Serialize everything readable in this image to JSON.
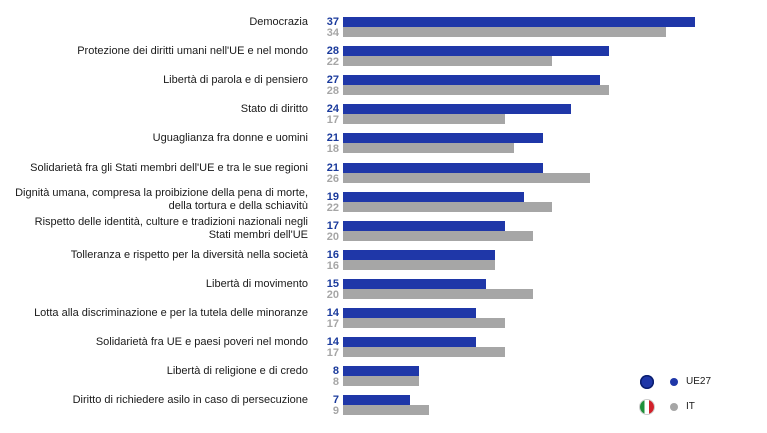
{
  "chart_data": {
    "type": "bar",
    "orientation": "horizontal",
    "xlim": [
      0,
      40
    ],
    "grid": false,
    "legend_position": "bottom-right",
    "categories": [
      [
        "Democrazia"
      ],
      [
        "Protezione dei diritti umani nell'UE e nel mondo"
      ],
      [
        "Libertà di parola e di pensiero"
      ],
      [
        "Stato di diritto"
      ],
      [
        "Uguaglianza fra donne e uomini"
      ],
      [
        "Solidarietà fra gli Stati membri dell'UE e tra le sue regioni"
      ],
      [
        "Dignità umana, compresa la proibizione della pena di morte,",
        "della tortura e della schiavitù"
      ],
      [
        "Rispetto delle identità, culture e tradizioni nazionali negli",
        "Stati membri dell'UE"
      ],
      [
        "Tolleranza e rispetto per la diversità nella società"
      ],
      [
        "Libertà di movimento"
      ],
      [
        "Lotta alla discriminazione e per la tutela delle minoranze"
      ],
      [
        "Solidarietà fra UE e paesi poveri nel mondo"
      ],
      [
        "Libertà di religione e di credo"
      ],
      [
        "Diritto di richiedere asilo in caso di persecuzione"
      ]
    ],
    "series": [
      {
        "name": "UE27",
        "color": "#1f37a8",
        "values": [
          37,
          28,
          27,
          24,
          21,
          21,
          19,
          17,
          16,
          15,
          14,
          14,
          8,
          7
        ]
      },
      {
        "name": "IT",
        "color": "#a6a6a6",
        "values": [
          34,
          22,
          28,
          17,
          18,
          26,
          22,
          20,
          16,
          20,
          17,
          17,
          8,
          9
        ]
      }
    ]
  },
  "legend": {
    "items": [
      {
        "label": "UE27",
        "icon": "eu-flag-icon"
      },
      {
        "label": "IT",
        "icon": "italy-flag-icon"
      }
    ]
  }
}
